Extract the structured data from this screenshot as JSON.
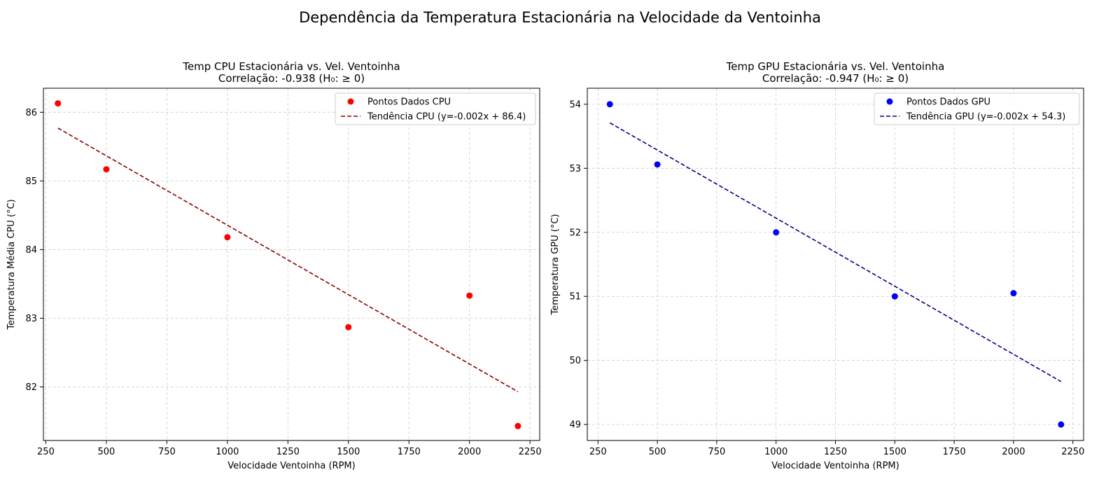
{
  "figure": {
    "suptitle": "Dependência da Temperatura Estacionária na Velocidade da Ventoinha"
  },
  "chart_data": [
    {
      "type": "scatter",
      "title_line1": "Temp CPU Estacionária vs. Vel. Ventoinha",
      "title_line2": "Correlação: -0.938 (H₀: ≥ 0)",
      "xlabel": "Velocidade Ventoinha (RPM)",
      "ylabel": "Temperatura Média CPU (°C)",
      "xlim": [
        240,
        2290
      ],
      "ylim": [
        81.22,
        86.35
      ],
      "xticks": [
        250,
        500,
        750,
        1000,
        1250,
        1500,
        1750,
        2000,
        2250
      ],
      "yticks": [
        82,
        83,
        84,
        85,
        86
      ],
      "grid": true,
      "legend_position": "top-right",
      "series": [
        {
          "name": "Pontos Dados CPU",
          "kind": "scatter",
          "color": "#ff0000",
          "x": [
            300,
            500,
            1000,
            1500,
            2000,
            2200
          ],
          "y": [
            86.13,
            85.17,
            84.18,
            82.87,
            83.33,
            81.43
          ]
        },
        {
          "name": "Tendência CPU (y=-0.002x + 86.4)",
          "kind": "trend",
          "color": "#8b0000",
          "x": [
            300,
            2200
          ],
          "y": [
            85.77,
            81.93
          ]
        }
      ]
    },
    {
      "type": "scatter",
      "title_line1": "Temp GPU Estacionária vs. Vel. Ventoinha",
      "title_line2": "Correlação: -0.947 (H₀: ≥ 0)",
      "xlabel": "Velocidade Ventoinha (RPM)",
      "ylabel": "Temperatura GPU (°C)",
      "xlim": [
        205,
        2295
      ],
      "ylim": [
        48.75,
        54.25
      ],
      "xticks": [
        250,
        500,
        750,
        1000,
        1250,
        1500,
        1750,
        2000,
        2250
      ],
      "yticks": [
        49,
        50,
        51,
        52,
        53,
        54
      ],
      "grid": true,
      "legend_position": "top-right",
      "series": [
        {
          "name": "Pontos Dados GPU",
          "kind": "scatter",
          "color": "#0000ff",
          "x": [
            300,
            500,
            1000,
            1500,
            2000,
            2200
          ],
          "y": [
            54.0,
            53.06,
            52.0,
            51.0,
            51.05,
            49.0
          ]
        },
        {
          "name": "Tendência GPU (y=-0.002x + 54.3)",
          "kind": "trend",
          "color": "#00008b",
          "x": [
            300,
            2200
          ],
          "y": [
            53.71,
            49.67
          ]
        }
      ]
    }
  ]
}
